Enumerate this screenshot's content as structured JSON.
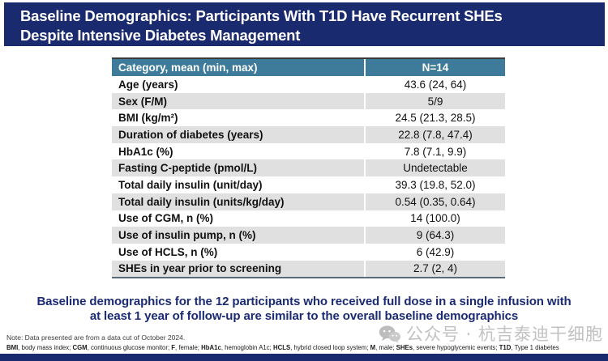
{
  "header": {
    "title_lines": [
      "Baseline Demographics: Participants With T1D Have Recurrent SHEs",
      "Despite Intensive Diabetes Management"
    ]
  },
  "table": {
    "col_category": "Category, mean (min, max)",
    "col_value": "N=14",
    "rows": [
      {
        "label": "Age (years)",
        "value": "43.6 (24, 64)"
      },
      {
        "label": "Sex (F/M)",
        "value": "5/9"
      },
      {
        "label": "BMI (kg/m²)",
        "value": "24.5 (21.3, 28.5)"
      },
      {
        "label": "Duration of diabetes (years)",
        "value": "22.8 (7.8, 47.4)"
      },
      {
        "label": "HbA1c (%)",
        "value": "7.8 (7.1, 9.9)"
      },
      {
        "label": "Fasting C-peptide (pmol/L)",
        "value": "Undetectable"
      },
      {
        "label": "Total daily insulin (unit/day)",
        "value": "39.3 (19.8, 52.0)"
      },
      {
        "label": "Total daily insulin (units/kg/day)",
        "value": "0.54 (0.35, 0.64)"
      },
      {
        "label": "Use of CGM, n (%)",
        "value": "14 (100.0)"
      },
      {
        "label": "Use of insulin pump, n (%)",
        "value": "9 (64.3)"
      },
      {
        "label": "Use of HCLS, n (%)",
        "value": "6 (42.9)"
      },
      {
        "label": "SHEs in year prior to screening",
        "value": "2.7 (2, 4)"
      }
    ]
  },
  "summary": {
    "line1": "Baseline demographics for the 12 participants who received full dose in a single infusion with",
    "line2": "at least 1 year of follow-up are similar to the overall baseline demographics"
  },
  "footer": {
    "note": "Note: Data presented are from a data cut of October 2024.",
    "abbreviations": [
      {
        "term": "BMI",
        "def": "body mass index"
      },
      {
        "term": "CGM",
        "def": "continuous glucose monitor"
      },
      {
        "term": "F",
        "def": "female"
      },
      {
        "term": "HbA1c",
        "def": "hemoglobin A1c"
      },
      {
        "term": "HCLS",
        "def": "hybrid closed loop system"
      },
      {
        "term": "M",
        "def": "male"
      },
      {
        "term": "SHEs",
        "def": "severe hypoglycemic events"
      },
      {
        "term": "T1D",
        "def": "Type 1 diabetes"
      }
    ]
  },
  "watermark": {
    "icon": "wechat-icon",
    "text": "公众号 · 杭吉泰迪干细胞"
  },
  "colors": {
    "header_navy": "#1a2a6e",
    "table_header_teal": "#3e7b9b",
    "row_alt_gray": "#e0e0e0",
    "summary_navy": "#1b2a74",
    "watermark_gray": "#c2c2c2"
  }
}
